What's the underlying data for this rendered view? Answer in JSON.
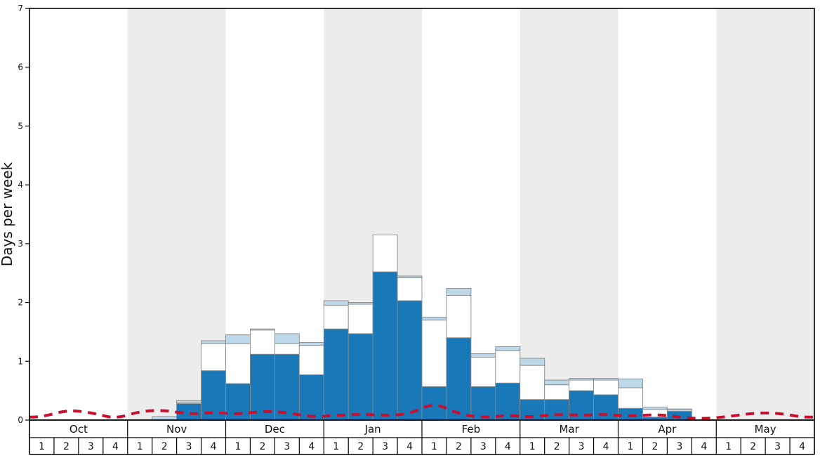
{
  "chart_data": {
    "type": "bar",
    "title": "",
    "ylabel": "Days per week",
    "ylim": [
      0,
      7
    ],
    "yticks": [
      "0",
      "1",
      "2",
      "3",
      "4",
      "5",
      "6",
      "7"
    ],
    "grid": false,
    "legend": "none",
    "months": [
      "Oct",
      "Nov",
      "Dec",
      "Jan",
      "Feb",
      "Mar",
      "Apr",
      "May"
    ],
    "week_labels": [
      "1",
      "2",
      "3",
      "4"
    ],
    "weeks_per_month": 4,
    "colors": {
      "dark_blue": "#1878b8",
      "white_bar": "#ffffff",
      "light_blue": "#bdd8e8",
      "band_gray": "#ececec",
      "line_red": "#c8102e",
      "axis": "#000000",
      "bar_outline": "#8a8a8a"
    },
    "series": [
      {
        "name": "dark_blue_bars",
        "color": "#1878b8",
        "values": [
          0,
          0,
          0,
          0,
          0,
          0,
          0.28,
          0.84,
          0.62,
          1.12,
          1.12,
          0.77,
          1.55,
          1.47,
          2.52,
          2.03,
          0.57,
          1.4,
          0.57,
          0.63,
          0.35,
          0.35,
          0.5,
          0.43,
          0.2,
          0.05,
          0.15,
          0,
          0,
          0,
          0,
          0
        ]
      },
      {
        "name": "white_bars",
        "color": "#ffffff",
        "values": [
          0,
          0,
          0,
          0,
          0,
          0,
          0.02,
          0.46,
          0.68,
          0.41,
          0.18,
          0.5,
          0.4,
          0.5,
          0.63,
          0.39,
          1.13,
          0.72,
          0.5,
          0.55,
          0.58,
          0.25,
          0.18,
          0.25,
          0.35,
          0.13,
          0.02,
          0,
          0,
          0,
          0,
          0
        ]
      },
      {
        "name": "light_blue_bars",
        "color": "#bdd8e8",
        "values": [
          0,
          0,
          0,
          0,
          0,
          0.06,
          0.03,
          0.05,
          0.15,
          0.02,
          0.17,
          0.05,
          0.08,
          0.03,
          0,
          0.03,
          0.05,
          0.12,
          0.06,
          0.07,
          0.12,
          0.08,
          0.03,
          0.03,
          0.15,
          0.04,
          0.02,
          0,
          0,
          0,
          0,
          0
        ]
      }
    ],
    "line": {
      "name": "red_dashed_line",
      "color": "#c8102e",
      "values": [
        0.05,
        0.17,
        0.13,
        0.02,
        0.15,
        0.17,
        0.1,
        0.13,
        0.1,
        0.15,
        0.13,
        0.05,
        0.08,
        0.1,
        0.08,
        0.1,
        0.3,
        0.1,
        0.04,
        0.08,
        0.05,
        0.1,
        0.08,
        0.1,
        0.06,
        0.1,
        0.05,
        0.02,
        0.06,
        0.12,
        0.12,
        0.05
      ]
    }
  }
}
